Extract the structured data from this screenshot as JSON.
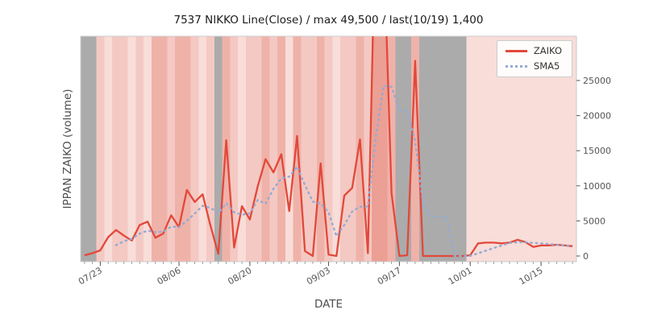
{
  "window": {
    "title": "7537 NIKKO stock volume chart"
  },
  "chart_data": {
    "type": "line",
    "title": "7537 NIKKO Line(Close) / max 49,500 / last(10/19) 1,400",
    "xlabel": "DATE",
    "ylabel": "IPPAN ZAIKO (volume)",
    "x_tick_labels": [
      "07/23",
      "08/06",
      "08/20",
      "09/03",
      "09/17",
      "10/01",
      "10/15"
    ],
    "y_tick_values": [
      0,
      5000,
      10000,
      15000,
      20000,
      25000
    ],
    "y_axis_side": "right",
    "ylim": [
      0,
      31300
    ],
    "max_value": 49500,
    "last_value": 1400,
    "last_date": "10/19",
    "dates": [
      "07/19",
      "07/22",
      "07/23",
      "07/24",
      "07/25",
      "07/26",
      "07/29",
      "07/30",
      "07/31",
      "08/01",
      "08/02",
      "08/05",
      "08/06",
      "08/07",
      "08/08",
      "08/09",
      "08/13",
      "08/14",
      "08/15",
      "08/16",
      "08/19",
      "08/20",
      "08/21",
      "08/22",
      "08/23",
      "08/26",
      "08/27",
      "08/28",
      "08/29",
      "08/30",
      "09/02",
      "09/03",
      "09/04",
      "09/05",
      "09/06",
      "09/09",
      "09/10",
      "09/11",
      "09/12",
      "09/13",
      "09/17",
      "09/18",
      "09/19",
      "09/20",
      "09/24",
      "09/25",
      "09/26",
      "09/27",
      "09/30",
      "10/01",
      "10/02",
      "10/03",
      "10/04",
      "10/07",
      "10/08",
      "10/09",
      "10/10",
      "10/11",
      "10/15",
      "10/16",
      "10/17",
      "10/18",
      "10/19"
    ],
    "series": [
      {
        "name": "ZAIKO",
        "color": "#e2483a",
        "style": "solid",
        "values": [
          100,
          400,
          800,
          2700,
          3700,
          2900,
          2200,
          4400,
          4900,
          2600,
          3200,
          5800,
          4100,
          9400,
          7700,
          8800,
          4300,
          300,
          16500,
          1200,
          7100,
          5200,
          9900,
          13800,
          11900,
          14500,
          6400,
          17100,
          700,
          0,
          13200,
          200,
          0,
          8600,
          9700,
          16600,
          400,
          49500,
          45000,
          9000,
          0,
          100,
          27800,
          0,
          0,
          0,
          0,
          0,
          0,
          100,
          1800,
          1900,
          1900,
          1800,
          1900,
          2300,
          2000,
          1300,
          1500,
          1500,
          1600,
          1500,
          1400
        ]
      },
      {
        "name": "SMA5",
        "color": "#93abd4",
        "style": "dotted",
        "derived": "5-day moving average of ZAIKO"
      }
    ],
    "legend": {
      "position": "upper right",
      "entries": [
        "ZAIKO",
        "SMA5"
      ]
    },
    "band_palette": {
      "p0": "#f8ddd9",
      "p1": "#f4c9c3",
      "p2": "#efb2a9",
      "p3": "#ec9f94",
      "g": "#ababab"
    },
    "day_band_codes": [
      "g",
      "g",
      "p1",
      "p0",
      "p1",
      "p1",
      "p0",
      "p1",
      "p0",
      "p2",
      "p2",
      "p1",
      "p2",
      "p2",
      "p1",
      "p0",
      "p1",
      "g",
      "p2",
      "p1",
      "p0",
      "p1",
      "p1",
      "p2",
      "p1",
      "p2",
      "p0",
      "p2",
      "p1",
      "p1",
      "p2",
      "p1",
      "p0",
      "p1",
      "p1",
      "p2",
      "p1",
      "p3",
      "p3",
      "p2",
      "g",
      "g",
      "p2",
      "g",
      "g",
      "g",
      "g",
      "g",
      "g",
      "p0",
      "p0",
      "p0",
      "p0",
      "p0",
      "p0",
      "p0",
      "p0",
      "p0",
      "p0",
      "p0",
      "p0",
      "p0",
      "p0"
    ],
    "colors": {
      "axis_text": "#555555",
      "title_text": "#1a1a1a",
      "spine": "#cccccc",
      "tick": "#555555"
    }
  }
}
